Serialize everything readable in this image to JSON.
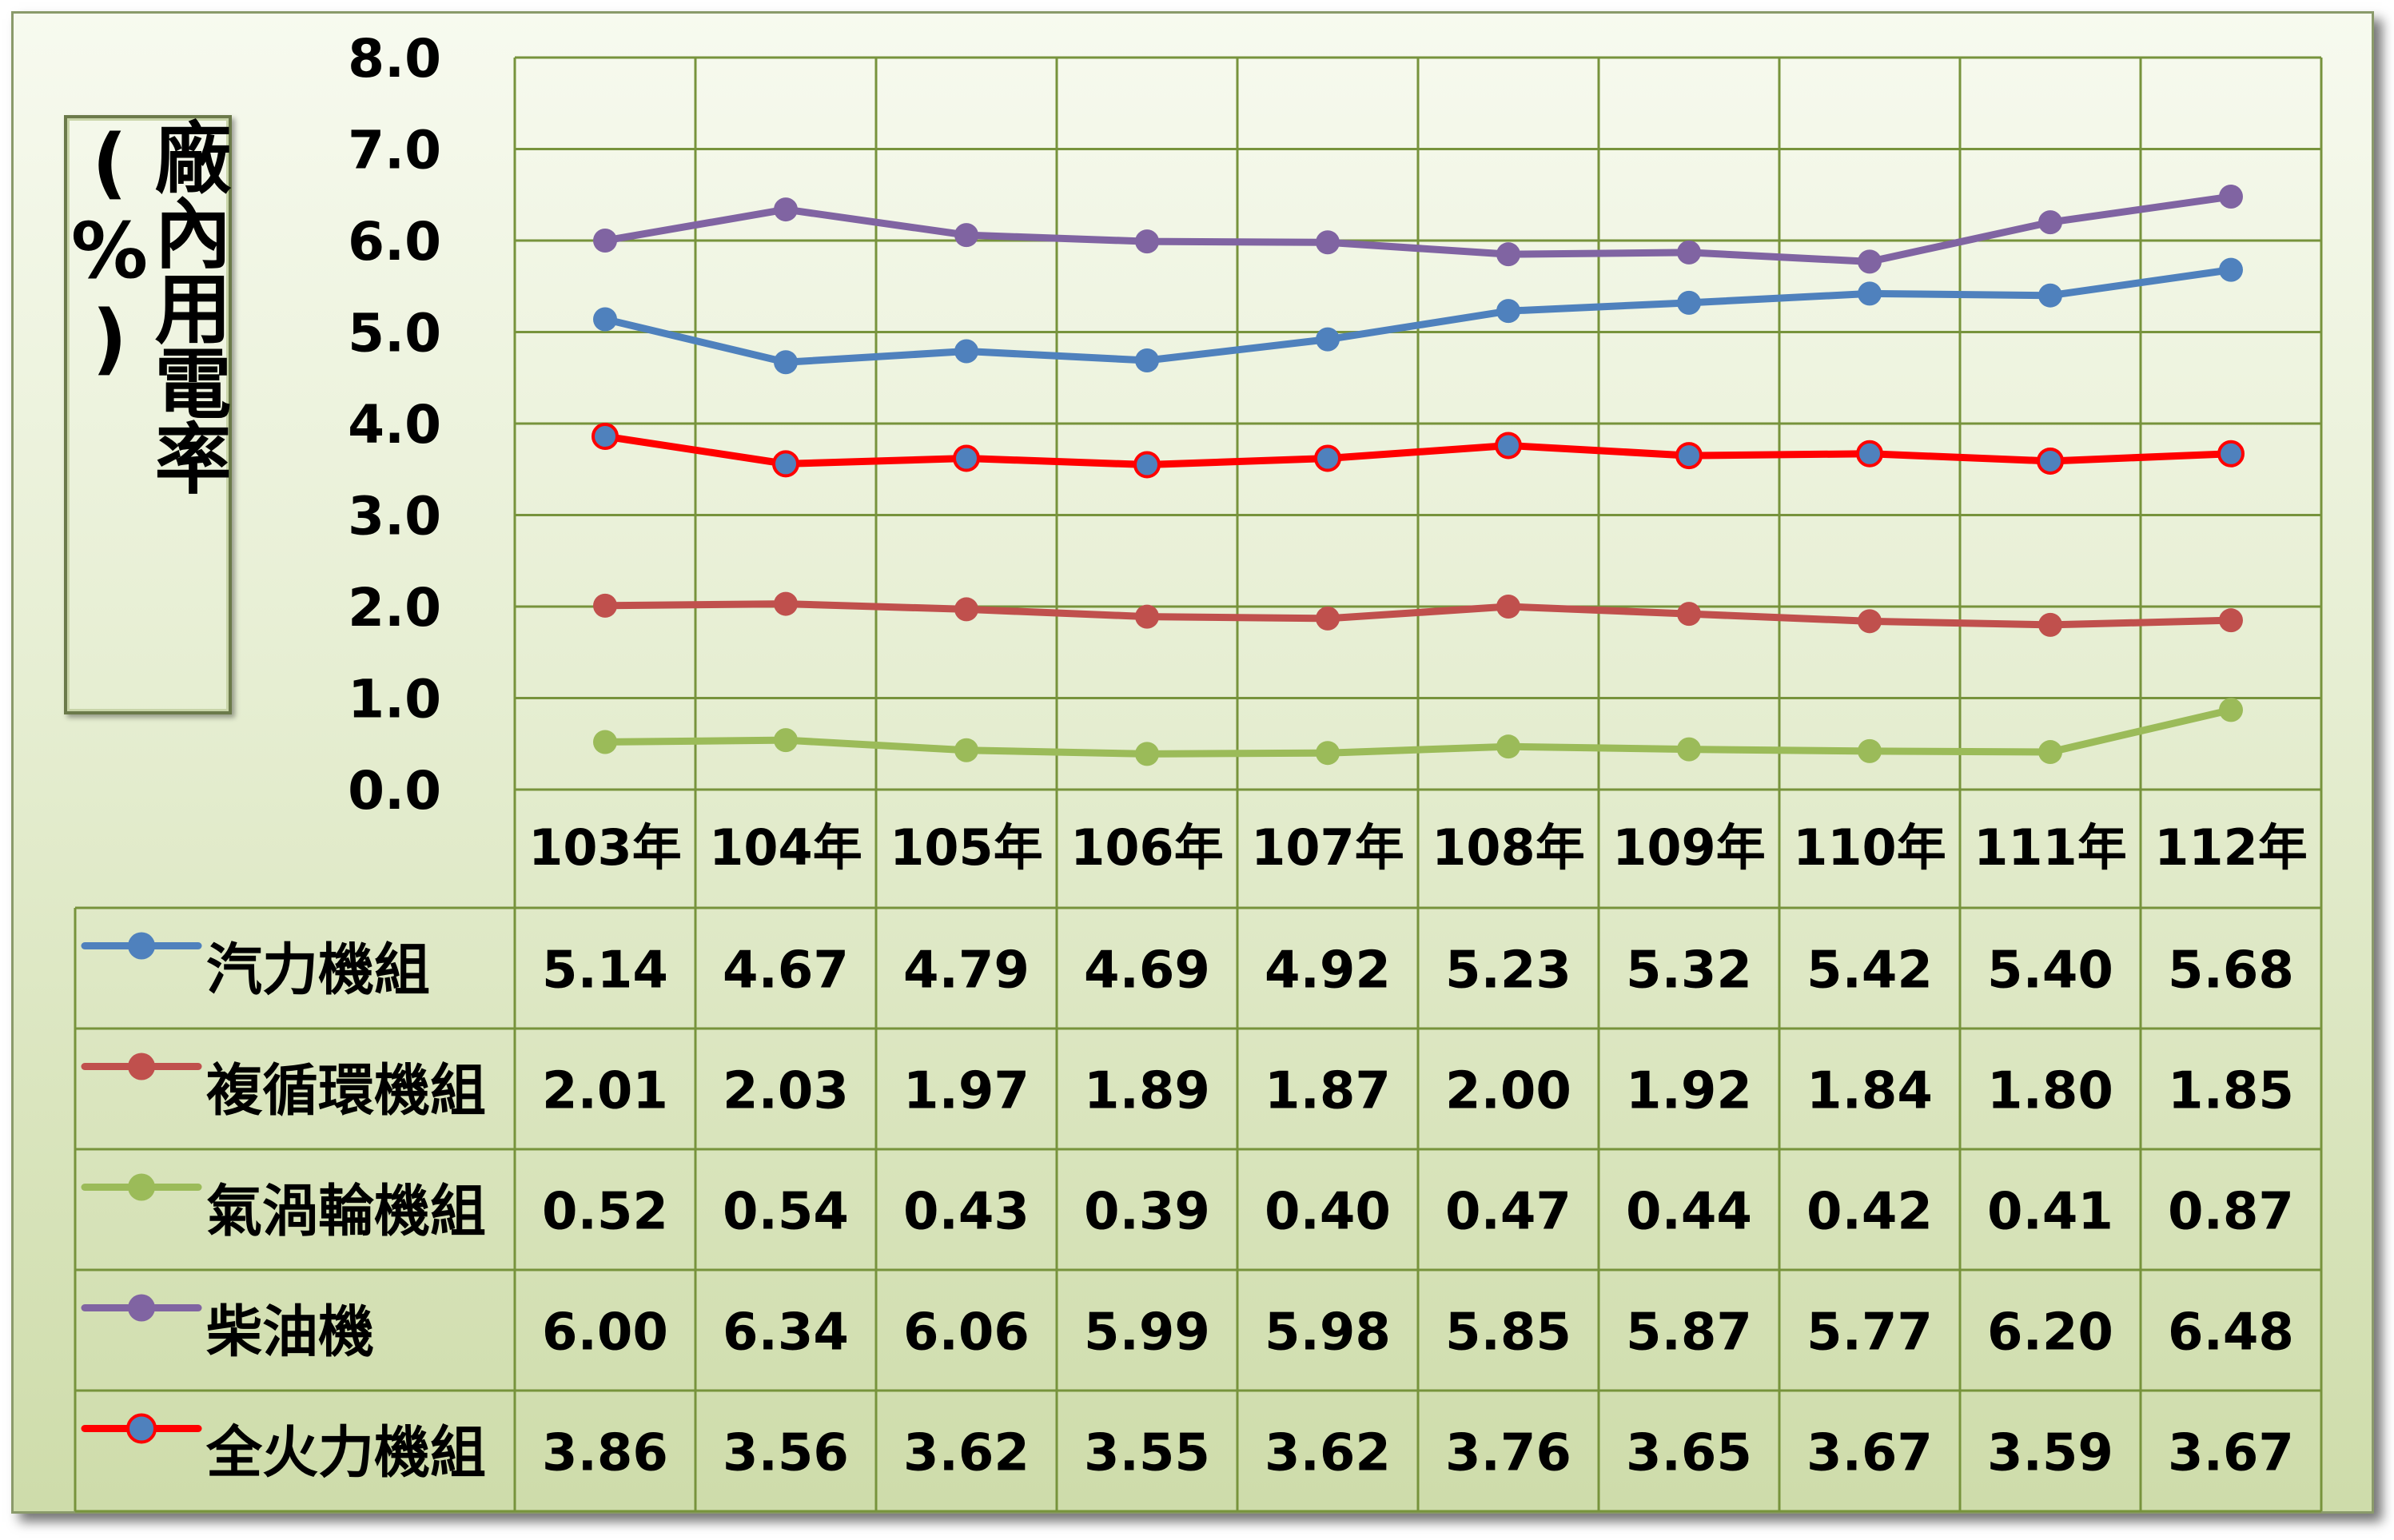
{
  "chart_data": {
    "type": "line",
    "ylabel": "廠內用電率(%)",
    "ylim": [
      0,
      8
    ],
    "yticks": [
      "8.0",
      "7.0",
      "6.0",
      "5.0",
      "4.0",
      "3.0",
      "2.0",
      "1.0",
      "0.0"
    ],
    "categories": [
      "103年",
      "104年",
      "105年",
      "106年",
      "107年",
      "108年",
      "109年",
      "110年",
      "111年",
      "112年"
    ],
    "grid": true,
    "legend": "data-table",
    "series": [
      {
        "name": "汽力機組",
        "color": "#4f81bd",
        "values": [
          5.14,
          4.67,
          4.79,
          4.69,
          4.92,
          5.23,
          5.32,
          5.42,
          5.4,
          5.68
        ],
        "labels": [
          "5.14",
          "4.67",
          "4.79",
          "4.69",
          "4.92",
          "5.23",
          "5.32",
          "5.42",
          "5.40",
          "5.68"
        ]
      },
      {
        "name": "複循環機組",
        "color": "#c0504d",
        "values": [
          2.01,
          2.03,
          1.97,
          1.89,
          1.87,
          2.0,
          1.92,
          1.84,
          1.8,
          1.85
        ],
        "labels": [
          "2.01",
          "2.03",
          "1.97",
          "1.89",
          "1.87",
          "2.00",
          "1.92",
          "1.84",
          "1.80",
          "1.85"
        ]
      },
      {
        "name": "氣渦輪機組",
        "color": "#9bbb59",
        "values": [
          0.52,
          0.54,
          0.43,
          0.39,
          0.4,
          0.47,
          0.44,
          0.42,
          0.41,
          0.87
        ],
        "labels": [
          "0.52",
          "0.54",
          "0.43",
          "0.39",
          "0.40",
          "0.47",
          "0.44",
          "0.42",
          "0.41",
          "0.87"
        ]
      },
      {
        "name": "柴油機",
        "color": "#8064a2",
        "values": [
          6.0,
          6.34,
          6.06,
          5.99,
          5.98,
          5.85,
          5.87,
          5.77,
          6.2,
          6.48
        ],
        "labels": [
          "6.00",
          "6.34",
          "6.06",
          "5.99",
          "5.98",
          "5.85",
          "5.87",
          "5.77",
          "6.20",
          "6.48"
        ]
      },
      {
        "name": "全火力機組",
        "color": "#ff0000",
        "marker_color": "#4f81bd",
        "values": [
          3.86,
          3.56,
          3.62,
          3.55,
          3.62,
          3.76,
          3.65,
          3.67,
          3.59,
          3.67
        ],
        "labels": [
          "3.86",
          "3.56",
          "3.62",
          "3.55",
          "3.62",
          "3.76",
          "3.65",
          "3.67",
          "3.59",
          "3.67"
        ]
      }
    ]
  }
}
